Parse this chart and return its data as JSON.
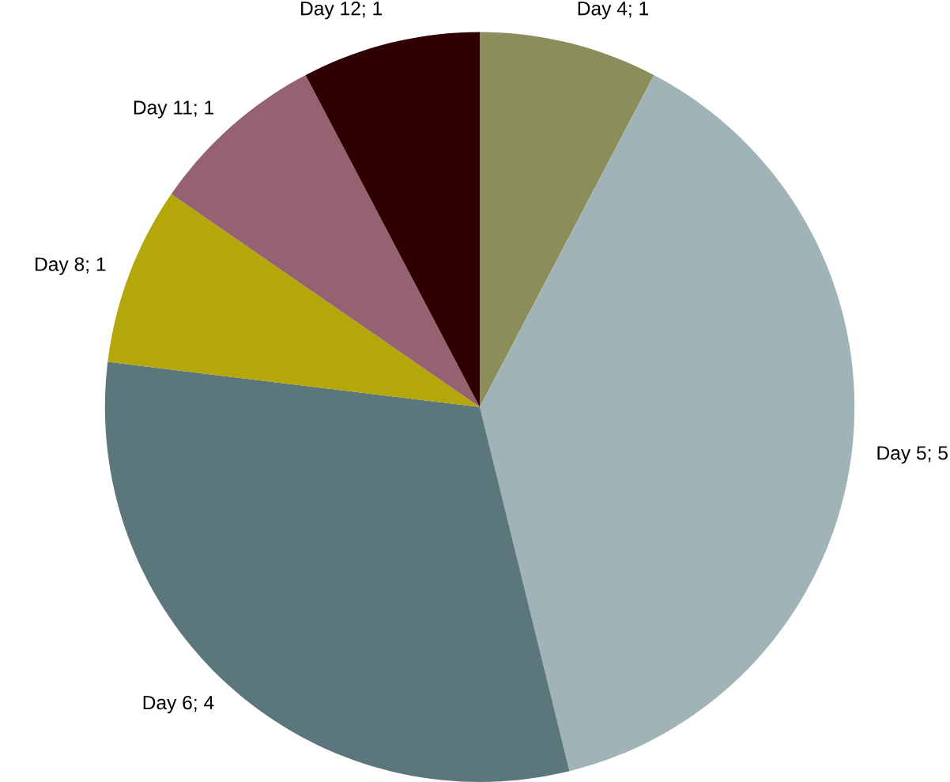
{
  "chart_data": {
    "type": "pie",
    "categories": [
      "Day 4; 1",
      "Day 5; 5",
      "Day 6; 4",
      "Day 8; 1",
      "Day 11; 1",
      "Day 12; 1"
    ],
    "values": [
      1,
      5,
      4,
      1,
      1,
      1
    ],
    "colors": [
      "#8b8e5a",
      "#a0b3b6",
      "#5c777c",
      "#b4a70a",
      "#966272",
      "#2e0000"
    ]
  }
}
